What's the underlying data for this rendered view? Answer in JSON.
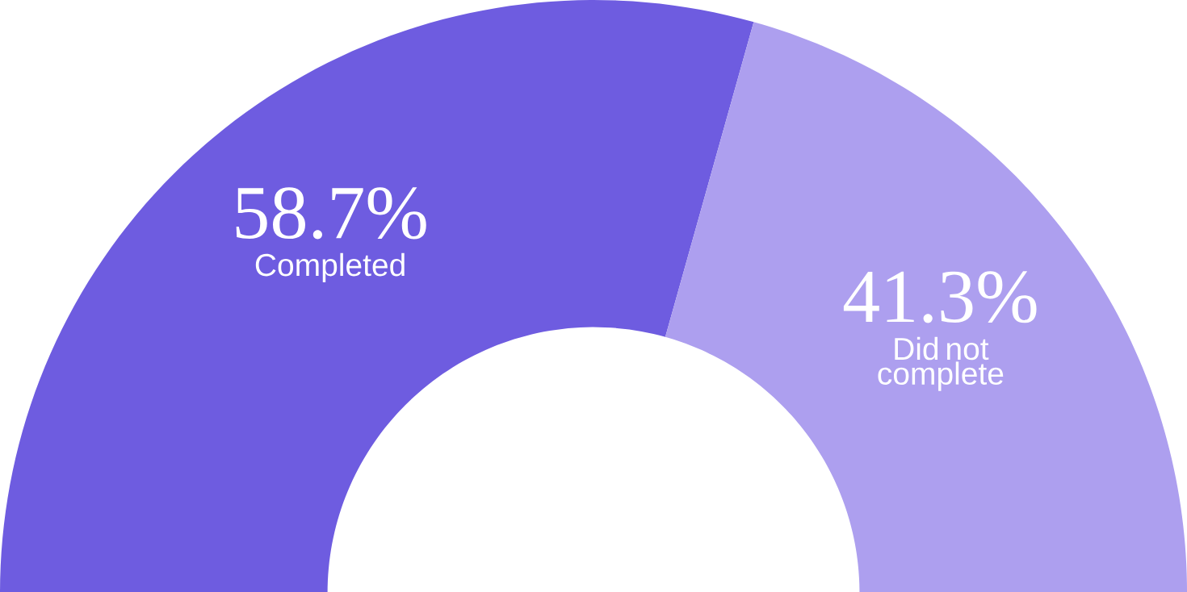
{
  "chart_data": {
    "type": "donut",
    "categories": [
      "Completed",
      "Did not complete"
    ],
    "values": [
      58.7,
      41.3
    ],
    "value_labels": [
      "58.7%",
      "41.3%"
    ],
    "colors": [
      "#6e5ce0",
      "#ad9fef"
    ]
  }
}
